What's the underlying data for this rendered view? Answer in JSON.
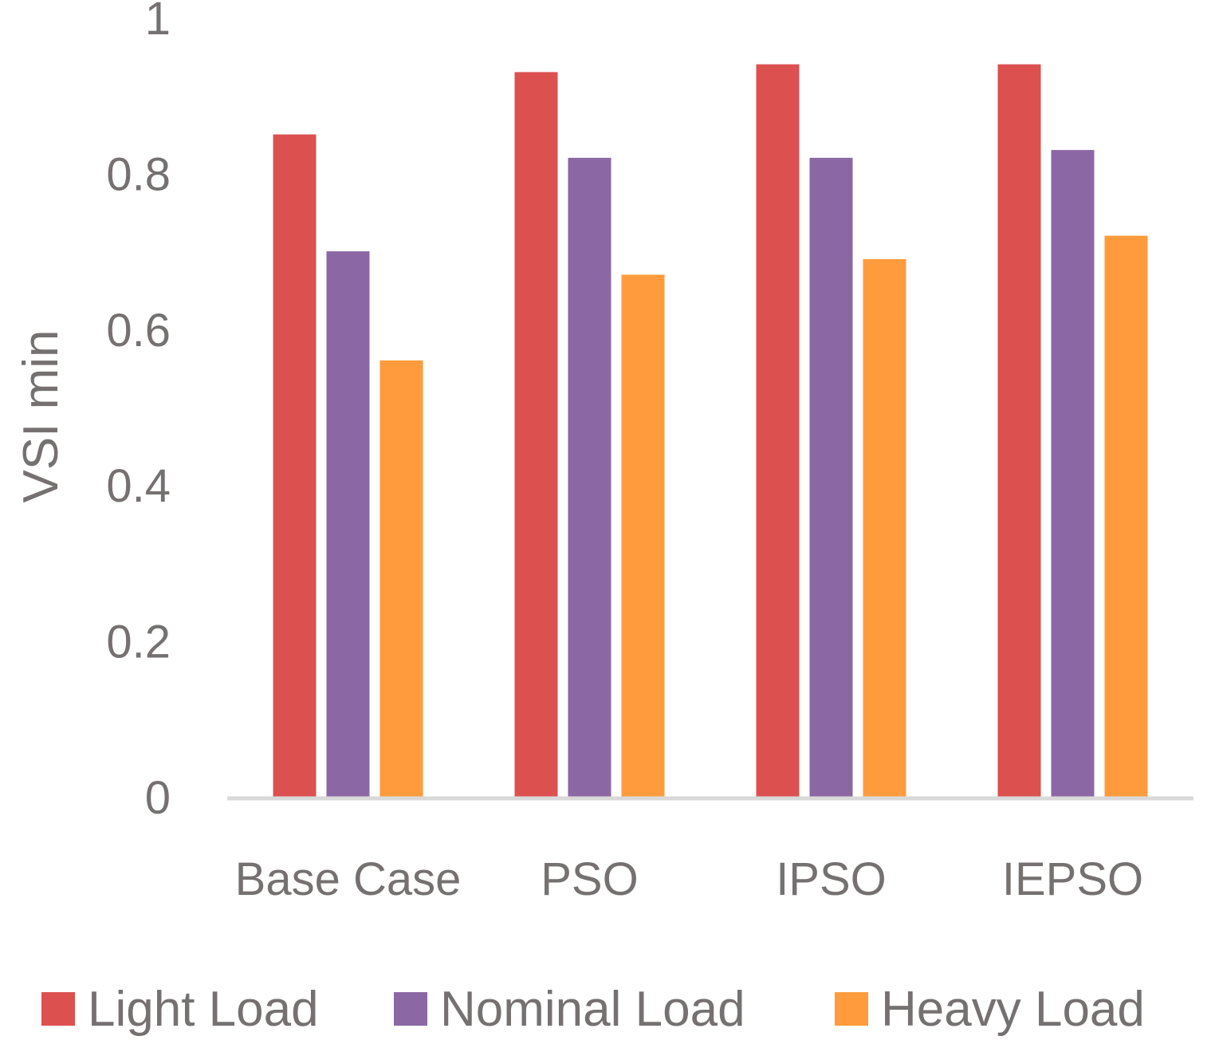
{
  "chart_data": {
    "type": "bar",
    "title": "",
    "xlabel": "",
    "ylabel": "VSI min",
    "ylim": [
      0,
      1
    ],
    "yticks": [
      "0",
      "0.2",
      "0.4",
      "0.6",
      "0.8",
      "1"
    ],
    "ytick_values": [
      0,
      0.2,
      0.4,
      0.6,
      0.8,
      1
    ],
    "categories": [
      "Base Case",
      "PSO",
      "IPSO",
      "IEPSO"
    ],
    "series": [
      {
        "name": "Light Load",
        "color": "#DC5050",
        "values": [
          0.85,
          0.93,
          0.94,
          0.94
        ]
      },
      {
        "name": "Nominal Load",
        "color": "#8B67A4",
        "values": [
          0.7,
          0.82,
          0.82,
          0.83
        ]
      },
      {
        "name": "Heavy Load",
        "color": "#FF9B3C",
        "values": [
          0.56,
          0.67,
          0.69,
          0.72
        ]
      }
    ],
    "grid": false,
    "legend_position": "bottom"
  }
}
